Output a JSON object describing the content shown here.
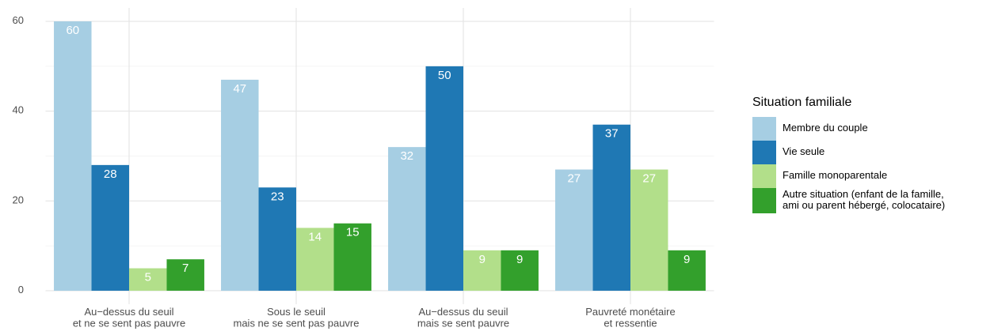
{
  "chart_data": {
    "type": "bar",
    "categories": [
      "Au−dessus du seuil\net ne se sent pas pauvre",
      "Sous le seuil\nmais ne se sent pas pauvre",
      "Au−dessus du seuil\nmais se sent pauvre",
      "Pauvreté monétaire\net ressentie"
    ],
    "series": [
      {
        "name": "Membre du couple",
        "color": "#a6cee3",
        "values": [
          60,
          47,
          32,
          27
        ]
      },
      {
        "name": "Vie seule",
        "color": "#1f78b4",
        "values": [
          28,
          23,
          50,
          37
        ]
      },
      {
        "name": "Famille monoparentale",
        "color": "#b2df8a",
        "values": [
          5,
          14,
          9,
          27
        ]
      },
      {
        "name": "Autre situation (enfant de la famille,\nami ou parent hébergé, colocataire)",
        "color": "#33a02c",
        "values": [
          7,
          15,
          9,
          9
        ]
      }
    ],
    "legend_title": "Situation familiale",
    "ylim": [
      -3,
      63
    ],
    "yticks": [
      0,
      20,
      40,
      60
    ],
    "yticks_minor": [
      10,
      30,
      50
    ],
    "grid": true
  }
}
